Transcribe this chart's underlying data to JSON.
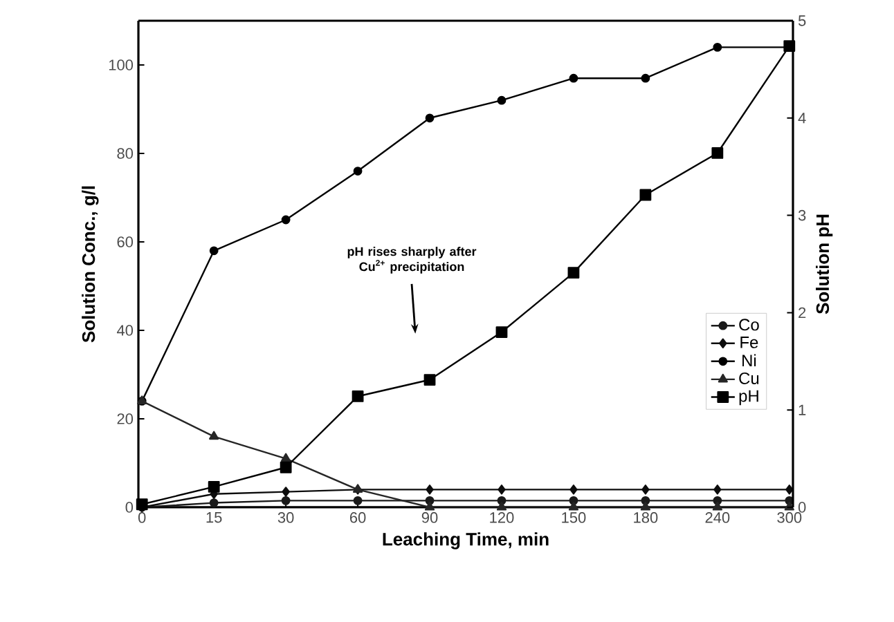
{
  "chart_data": {
    "type": "line",
    "xlabel": "Leaching Time, min",
    "ylabel": "Solution Conc., g/l",
    "y2label": "Solution pH",
    "categories": [
      "0",
      "15",
      "30",
      "60",
      "90",
      "120",
      "150",
      "180",
      "240",
      "300"
    ],
    "series": [
      {
        "name": "Co",
        "color": "#1a1a1a",
        "marker": "circle",
        "values": [
          0,
          1,
          1.5,
          1.5,
          1.5,
          1.5,
          1.5,
          1.5,
          1.5,
          1.5
        ]
      },
      {
        "name": "Fe",
        "color": "#0d0d0d",
        "marker": "diamond",
        "values": [
          0,
          3,
          3.5,
          4,
          4,
          4,
          4,
          4,
          4,
          4
        ]
      },
      {
        "name": "Ni",
        "color": "#000000",
        "marker": "circle",
        "values": [
          24,
          58,
          65,
          76,
          88,
          92,
          97,
          97,
          104,
          104
        ]
      },
      {
        "name": "Cu",
        "color": "#262626",
        "marker": "triangle",
        "values": [
          24,
          16,
          11,
          4,
          0,
          0,
          0,
          0,
          0,
          0
        ]
      },
      {
        "name": "pH",
        "color": "#000000",
        "marker": "square",
        "axis": "y2",
        "values": [
          0.03,
          0.21,
          0.41,
          1.14,
          1.31,
          1.8,
          2.41,
          3.21,
          3.64,
          4.74
        ]
      }
    ],
    "ylim": [
      0,
      110
    ],
    "yticks": [
      0,
      20,
      40,
      60,
      80,
      100
    ],
    "y2lim": [
      0,
      5
    ],
    "y2ticks": [
      0,
      1,
      2,
      3,
      4,
      5
    ],
    "annotations": [
      "pH rises sharply after Cu$^{2+}$ precipitation"
    ],
    "legend": "right",
    "grid": false,
    "line_style": "solid"
  }
}
